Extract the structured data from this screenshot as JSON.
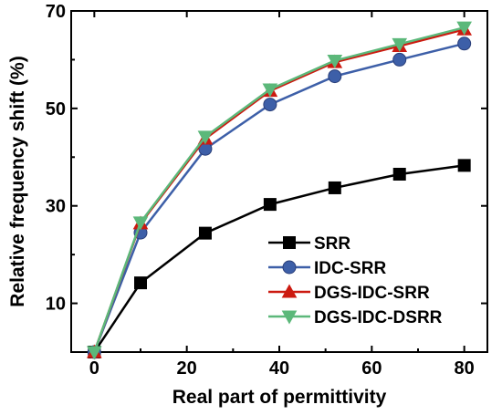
{
  "chart_data": {
    "type": "line",
    "xlabel": "Real part of permittivity",
    "ylabel": "Relative frequency shift (%)",
    "xlim": [
      -5,
      85
    ],
    "ylim": [
      0,
      70
    ],
    "xticks": [
      0,
      20,
      40,
      60,
      80
    ],
    "yticks": [
      10,
      30,
      50,
      70
    ],
    "grid": false,
    "legend_position": "bottom-right",
    "x": [
      0,
      10,
      24,
      38,
      52,
      66,
      80
    ],
    "series": [
      {
        "name": "SRR",
        "values": [
          0,
          14.2,
          24.4,
          30.3,
          33.7,
          36.5,
          38.3
        ],
        "color": "#000000",
        "marker": "square"
      },
      {
        "name": "IDC-SRR",
        "values": [
          0,
          24.5,
          41.7,
          50.8,
          56.6,
          60.0,
          63.3
        ],
        "color": "#3d5fa8",
        "marker": "circle"
      },
      {
        "name": "DGS-IDC-SRR",
        "values": [
          0,
          26.4,
          43.8,
          53.6,
          59.5,
          62.8,
          66.2
        ],
        "color": "#cc1a10",
        "marker": "triangle-up"
      },
      {
        "name": "DGS-IDC-DSRR",
        "values": [
          0,
          26.6,
          44.2,
          53.9,
          59.8,
          63.2,
          66.6
        ],
        "color": "#5cb87a",
        "marker": "triangle-down"
      }
    ]
  }
}
